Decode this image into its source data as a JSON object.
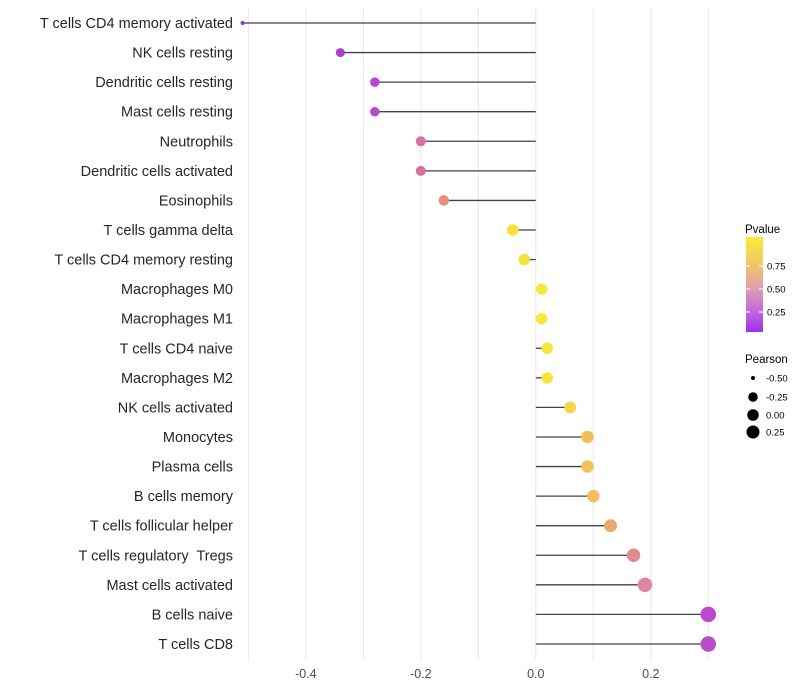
{
  "chart_data": {
    "type": "lollipop",
    "variant": "horizontal lollipop / dot-segment correlation plot",
    "title": "",
    "xlabel": "",
    "ylabel": "",
    "xlim": [
      -0.518,
      0.3465
    ],
    "grid": true,
    "gridline_values": [
      -0.5,
      -0.4,
      -0.3,
      -0.2,
      -0.1,
      0.0,
      0.1,
      0.2,
      0.3
    ],
    "x_ticks": [
      {
        "label": "-0.4",
        "value": -0.4
      },
      {
        "label": "-0.2",
        "value": -0.2
      },
      {
        "label": "0.0",
        "value": 0.0
      },
      {
        "label": "0.2",
        "value": 0.2
      }
    ],
    "points": [
      {
        "label": "T cells CD4 memory activated",
        "pearson": -0.51,
        "color": "#9334D6",
        "diameter": 4
      },
      {
        "label": "NK cells resting",
        "pearson": -0.34,
        "color": "#A93ED2",
        "diameter": 9
      },
      {
        "label": "Dendritic cells resting",
        "pearson": -0.28,
        "color": "#B846D2",
        "diameter": 9.5
      },
      {
        "label": "Mast cells resting",
        "pearson": -0.28,
        "color": "#BB49CF",
        "diameter": 9.5
      },
      {
        "label": "Neutrophils",
        "pearson": -0.2,
        "color": "#D4719E",
        "diameter": 10
      },
      {
        "label": "Dendritic cells activated",
        "pearson": -0.2,
        "color": "#D4719C",
        "diameter": 10
      },
      {
        "label": "Eosinophils",
        "pearson": -0.16,
        "color": "#E78F7E",
        "diameter": 10.5
      },
      {
        "label": "T cells gamma delta",
        "pearson": -0.04,
        "color": "#F5E03E",
        "diameter": 11.5
      },
      {
        "label": "T cells CD4 memory resting",
        "pearson": -0.02,
        "color": "#F5E13C",
        "diameter": 11.5
      },
      {
        "label": "Macrophages M0",
        "pearson": 0.01,
        "color": "#F7E93A",
        "diameter": 11.5
      },
      {
        "label": "Macrophages M1",
        "pearson": 0.01,
        "color": "#F7E73A",
        "diameter": 11.5
      },
      {
        "label": "T cells CD4 naive",
        "pearson": 0.02,
        "color": "#F6E43C",
        "diameter": 11.5
      },
      {
        "label": "Macrophages M2",
        "pearson": 0.02,
        "color": "#F6E43C",
        "diameter": 11.5
      },
      {
        "label": "NK cells activated",
        "pearson": 0.06,
        "color": "#F3D74B",
        "diameter": 12
      },
      {
        "label": "Monocytes",
        "pearson": 0.09,
        "color": "#EFC155",
        "diameter": 12.5
      },
      {
        "label": "Plasma cells",
        "pearson": 0.09,
        "color": "#F0C259",
        "diameter": 12.5
      },
      {
        "label": "B cells memory",
        "pearson": 0.1,
        "color": "#EFBF5C",
        "diameter": 12.5
      },
      {
        "label": "T cells follicular helper",
        "pearson": 0.13,
        "color": "#EBA96A",
        "diameter": 13
      },
      {
        "label": "T cells regulatory  Tregs",
        "pearson": 0.17,
        "color": "#E08A8D",
        "diameter": 13.5
      },
      {
        "label": "Mast cells activated",
        "pearson": 0.19,
        "color": "#DE85A2",
        "diameter": 14.5
      },
      {
        "label": "B cells naive",
        "pearson": 0.3,
        "color": "#BB49CB",
        "diameter": 15.5
      },
      {
        "label": "T cells CD8",
        "pearson": 0.3,
        "color": "#BC4ACC",
        "diameter": 15.5
      }
    ],
    "legend_pvalue": {
      "title": "Pvalue",
      "tick_labels": [
        "0.75",
        "0.50",
        "0.25"
      ],
      "gradient_top_to_bottom": [
        {
          "offset": "0%",
          "color": "#F9ED39"
        },
        {
          "offset": "30%",
          "color": "#F2C46A"
        },
        {
          "offset": "55%",
          "color": "#DE9CB3"
        },
        {
          "offset": "78%",
          "color": "#C368DC"
        },
        {
          "offset": "100%",
          "color": "#9F2EEF"
        }
      ]
    },
    "legend_pearson": {
      "title": "Pearson",
      "entries": [
        {
          "label": "-0.50",
          "diameter": 4
        },
        {
          "label": "-0.25",
          "diameter": 9.5
        },
        {
          "label": "0.00",
          "diameter": 11.5
        },
        {
          "label": "0.25",
          "diameter": 13
        }
      ]
    },
    "style": {
      "stem_color": "#424242",
      "gridline_color": "#e8e8e8",
      "category_label_color": "#262626",
      "axis_tick_color": "#4d4d4d",
      "legend_text_color": "#000000",
      "legend_dot_color": "#000000",
      "background": "#ffffff"
    }
  }
}
